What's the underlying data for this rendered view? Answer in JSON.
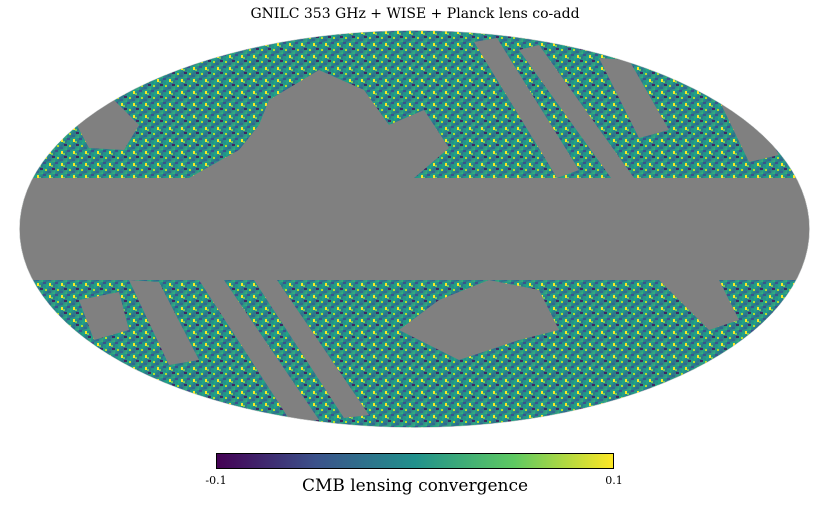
{
  "figure": {
    "title": "GNILC 353 GHz + WISE + Planck lens co-add",
    "projection": "mollweide",
    "mask_color": "#808080",
    "colormap": "viridis",
    "colorbar": {
      "label": "CMB lensing convergence",
      "min_label": "-0.1",
      "max_label": "0.1",
      "min": -0.1,
      "max": 0.1,
      "colors": [
        "#440154",
        "#3b528b",
        "#21918c",
        "#5ec962",
        "#fde725"
      ]
    }
  }
}
